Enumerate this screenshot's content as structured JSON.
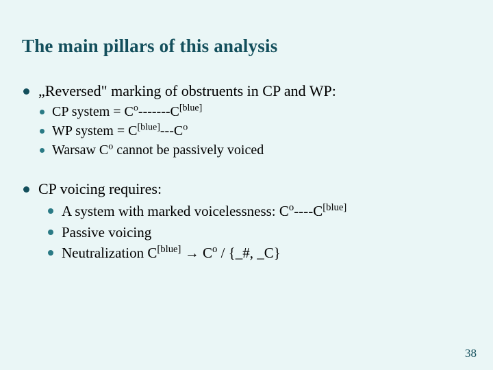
{
  "title": "The main pillars of this analysis",
  "b1": {
    "text": "„Reversed\" marking of obstruents in CP and WP:",
    "sub1_pre": "CP system   =   C",
    "sub1_sup1": "o",
    "sub1_mid": "-------C",
    "sub1_sup2": "[blue]",
    "sub2_pre": "WP system  =   C",
    "sub2_sup1": "[blue]",
    "sub2_mid": "---C",
    "sub2_sup2": "o",
    "sub3_pre": "Warsaw C",
    "sub3_sup": "o",
    "sub3_post": " cannot be passively voiced"
  },
  "b2": {
    "text": "CP voicing requires:",
    "sub1_pre": "A system with marked voicelessness: C",
    "sub1_sup1": "o",
    "sub1_mid": "----C",
    "sub1_sup2": "[blue]",
    "sub2": "Passive voicing",
    "sub3_pre": "Neutralization C",
    "sub3_sup1": "[blue]",
    "sub3_mid": " → C",
    "sub3_sup2": "o",
    "sub3_post": " / {_#, _C}"
  },
  "pagenum": "38",
  "colors": {
    "background": "#eaf6f6",
    "heading": "#134f5c",
    "bullet_top": "#134f5c",
    "bullet_sub": "#2a7a85",
    "text": "#000000"
  }
}
